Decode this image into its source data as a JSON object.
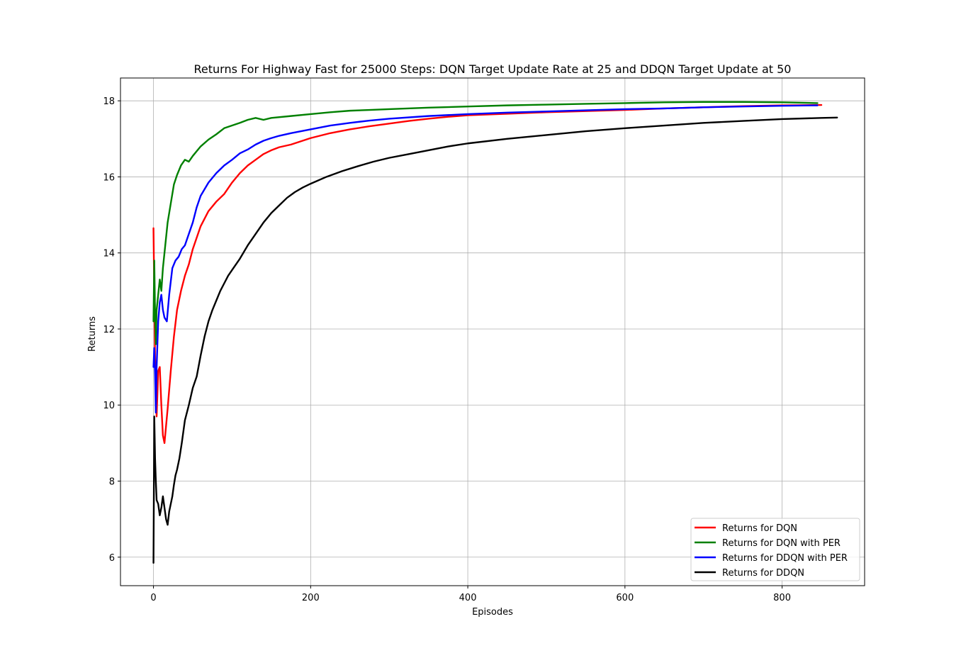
{
  "chart_data": {
    "type": "line",
    "title": "Returns For Highway Fast for 25000 Steps: DQN Target Update Rate at 25 and DDQN Target Update at 50",
    "xlabel": "Episodes",
    "ylabel": "Returns",
    "xlim": [
      -42,
      905
    ],
    "ylim": [
      5.25,
      18.6
    ],
    "xticks": [
      0,
      200,
      400,
      600,
      800
    ],
    "yticks": [
      6,
      8,
      10,
      12,
      14,
      16,
      18
    ],
    "grid": true,
    "legend_position": "lower-right",
    "series": [
      {
        "name": "Returns for DQN",
        "color": "#ff0000",
        "points": [
          [
            0,
            14.65
          ],
          [
            2,
            11.2
          ],
          [
            4,
            9.7
          ],
          [
            6,
            10.9
          ],
          [
            8,
            11.0
          ],
          [
            10,
            10.0
          ],
          [
            12,
            9.2
          ],
          [
            14,
            9.0
          ],
          [
            18,
            9.9
          ],
          [
            22,
            10.9
          ],
          [
            26,
            11.8
          ],
          [
            30,
            12.5
          ],
          [
            35,
            13.0
          ],
          [
            40,
            13.4
          ],
          [
            45,
            13.7
          ],
          [
            50,
            14.1
          ],
          [
            55,
            14.4
          ],
          [
            60,
            14.7
          ],
          [
            70,
            15.1
          ],
          [
            80,
            15.35
          ],
          [
            90,
            15.55
          ],
          [
            100,
            15.85
          ],
          [
            110,
            16.1
          ],
          [
            120,
            16.3
          ],
          [
            130,
            16.45
          ],
          [
            140,
            16.6
          ],
          [
            150,
            16.7
          ],
          [
            160,
            16.78
          ],
          [
            175,
            16.85
          ],
          [
            200,
            17.02
          ],
          [
            225,
            17.15
          ],
          [
            250,
            17.25
          ],
          [
            275,
            17.33
          ],
          [
            300,
            17.4
          ],
          [
            325,
            17.47
          ],
          [
            350,
            17.53
          ],
          [
            375,
            17.58
          ],
          [
            400,
            17.62
          ],
          [
            450,
            17.66
          ],
          [
            500,
            17.7
          ],
          [
            550,
            17.73
          ],
          [
            600,
            17.76
          ],
          [
            650,
            17.8
          ],
          [
            700,
            17.83
          ],
          [
            750,
            17.86
          ],
          [
            800,
            17.88
          ],
          [
            850,
            17.89
          ]
        ]
      },
      {
        "name": "Returns for DQN with PER",
        "color": "#008000",
        "points": [
          [
            0,
            12.2
          ],
          [
            1,
            13.8
          ],
          [
            2,
            12.4
          ],
          [
            3,
            11.6
          ],
          [
            4,
            12.5
          ],
          [
            6,
            12.9
          ],
          [
            8,
            13.3
          ],
          [
            10,
            13.0
          ],
          [
            12,
            13.6
          ],
          [
            15,
            14.2
          ],
          [
            18,
            14.8
          ],
          [
            22,
            15.3
          ],
          [
            26,
            15.8
          ],
          [
            30,
            16.05
          ],
          [
            35,
            16.3
          ],
          [
            40,
            16.45
          ],
          [
            45,
            16.4
          ],
          [
            50,
            16.55
          ],
          [
            60,
            16.8
          ],
          [
            70,
            16.98
          ],
          [
            80,
            17.12
          ],
          [
            90,
            17.28
          ],
          [
            100,
            17.35
          ],
          [
            110,
            17.42
          ],
          [
            120,
            17.5
          ],
          [
            130,
            17.55
          ],
          [
            140,
            17.5
          ],
          [
            150,
            17.55
          ],
          [
            175,
            17.6
          ],
          [
            200,
            17.65
          ],
          [
            225,
            17.7
          ],
          [
            250,
            17.74
          ],
          [
            275,
            17.76
          ],
          [
            300,
            17.78
          ],
          [
            350,
            17.82
          ],
          [
            400,
            17.85
          ],
          [
            450,
            17.88
          ],
          [
            500,
            17.9
          ],
          [
            550,
            17.92
          ],
          [
            600,
            17.94
          ],
          [
            650,
            17.96
          ],
          [
            700,
            17.97
          ],
          [
            750,
            17.97
          ],
          [
            800,
            17.96
          ],
          [
            845,
            17.94
          ]
        ]
      },
      {
        "name": "Returns for DDQN with PER",
        "color": "#0000ff",
        "points": [
          [
            0,
            11.0
          ],
          [
            1,
            11.5
          ],
          [
            2,
            10.8
          ],
          [
            3,
            9.8
          ],
          [
            4,
            11.0
          ],
          [
            6,
            12.2
          ],
          [
            8,
            12.7
          ],
          [
            10,
            12.9
          ],
          [
            12,
            12.5
          ],
          [
            14,
            12.3
          ],
          [
            17,
            12.2
          ],
          [
            20,
            12.9
          ],
          [
            24,
            13.6
          ],
          [
            28,
            13.8
          ],
          [
            32,
            13.9
          ],
          [
            36,
            14.1
          ],
          [
            40,
            14.2
          ],
          [
            45,
            14.5
          ],
          [
            50,
            14.8
          ],
          [
            55,
            15.2
          ],
          [
            60,
            15.5
          ],
          [
            70,
            15.85
          ],
          [
            80,
            16.1
          ],
          [
            90,
            16.3
          ],
          [
            100,
            16.45
          ],
          [
            110,
            16.62
          ],
          [
            120,
            16.72
          ],
          [
            130,
            16.85
          ],
          [
            140,
            16.95
          ],
          [
            150,
            17.02
          ],
          [
            160,
            17.08
          ],
          [
            175,
            17.15
          ],
          [
            200,
            17.25
          ],
          [
            225,
            17.35
          ],
          [
            250,
            17.42
          ],
          [
            275,
            17.48
          ],
          [
            300,
            17.53
          ],
          [
            350,
            17.6
          ],
          [
            400,
            17.65
          ],
          [
            450,
            17.69
          ],
          [
            500,
            17.72
          ],
          [
            550,
            17.75
          ],
          [
            600,
            17.78
          ],
          [
            650,
            17.8
          ],
          [
            700,
            17.83
          ],
          [
            750,
            17.85
          ],
          [
            800,
            17.87
          ],
          [
            845,
            17.88
          ]
        ]
      },
      {
        "name": "Returns for DDQN",
        "color": "#000000",
        "points": [
          [
            0,
            5.85
          ],
          [
            1,
            9.7
          ],
          [
            2,
            8.6
          ],
          [
            3,
            8.0
          ],
          [
            4,
            7.5
          ],
          [
            6,
            7.4
          ],
          [
            8,
            7.1
          ],
          [
            10,
            7.3
          ],
          [
            12,
            7.6
          ],
          [
            14,
            7.3
          ],
          [
            16,
            7.0
          ],
          [
            18,
            6.85
          ],
          [
            20,
            7.2
          ],
          [
            22,
            7.4
          ],
          [
            24,
            7.6
          ],
          [
            26,
            7.9
          ],
          [
            28,
            8.15
          ],
          [
            30,
            8.3
          ],
          [
            33,
            8.6
          ],
          [
            36,
            9.0
          ],
          [
            40,
            9.6
          ],
          [
            45,
            10.0
          ],
          [
            50,
            10.45
          ],
          [
            55,
            10.75
          ],
          [
            60,
            11.3
          ],
          [
            65,
            11.8
          ],
          [
            70,
            12.2
          ],
          [
            75,
            12.5
          ],
          [
            80,
            12.75
          ],
          [
            85,
            13.0
          ],
          [
            90,
            13.2
          ],
          [
            95,
            13.4
          ],
          [
            100,
            13.55
          ],
          [
            110,
            13.85
          ],
          [
            120,
            14.2
          ],
          [
            130,
            14.5
          ],
          [
            140,
            14.8
          ],
          [
            150,
            15.05
          ],
          [
            160,
            15.25
          ],
          [
            170,
            15.45
          ],
          [
            180,
            15.6
          ],
          [
            190,
            15.72
          ],
          [
            200,
            15.82
          ],
          [
            220,
            16.0
          ],
          [
            240,
            16.15
          ],
          [
            260,
            16.28
          ],
          [
            280,
            16.4
          ],
          [
            300,
            16.5
          ],
          [
            325,
            16.6
          ],
          [
            350,
            16.7
          ],
          [
            375,
            16.8
          ],
          [
            400,
            16.88
          ],
          [
            450,
            17.0
          ],
          [
            500,
            17.1
          ],
          [
            550,
            17.2
          ],
          [
            600,
            17.28
          ],
          [
            650,
            17.35
          ],
          [
            700,
            17.42
          ],
          [
            750,
            17.47
          ],
          [
            800,
            17.52
          ],
          [
            850,
            17.55
          ],
          [
            870,
            17.56
          ]
        ]
      }
    ]
  }
}
